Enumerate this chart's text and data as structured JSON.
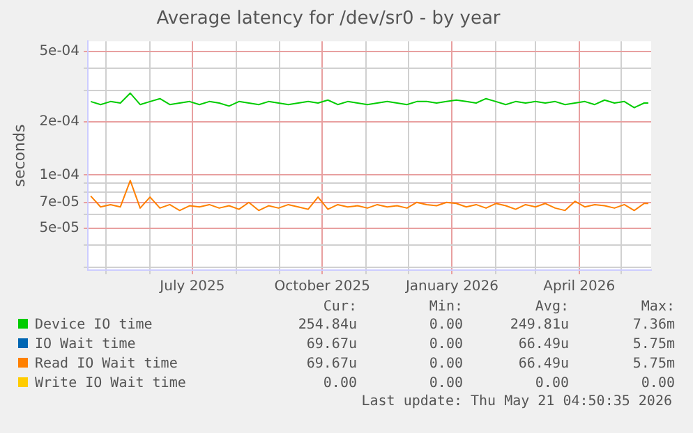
{
  "chart_data": {
    "type": "line",
    "title": "Average latency for /dev/sr0 - by year",
    "ylabel": "seconds",
    "log": "y",
    "grid": true,
    "legend": "bottom",
    "xlim": [
      "2025-04-18",
      "2026-05-22"
    ],
    "xticks": [
      {
        "value": "2025-05-01",
        "label": null
      },
      {
        "value": "2025-06-01",
        "label": null
      },
      {
        "value": "2025-07-01",
        "label": "July 2025"
      },
      {
        "value": "2025-08-01",
        "label": null
      },
      {
        "value": "2025-09-01",
        "label": null
      },
      {
        "value": "2025-10-01",
        "label": "October 2025"
      },
      {
        "value": "2025-11-01",
        "label": null
      },
      {
        "value": "2025-12-01",
        "label": null
      },
      {
        "value": "2026-01-01",
        "label": "January 2026"
      },
      {
        "value": "2026-02-01",
        "label": null
      },
      {
        "value": "2026-03-01",
        "label": null
      },
      {
        "value": "2026-04-01",
        "label": "April 2026"
      },
      {
        "value": "2026-05-01",
        "label": null
      }
    ],
    "ylim": [
      2.9e-05,
      0.00057
    ],
    "yticks": [
      {
        "value": 3e-05,
        "label": null
      },
      {
        "value": 4e-05,
        "label": null
      },
      {
        "value": 5e-05,
        "label": "5e-05"
      },
      {
        "value": 6e-05,
        "label": null
      },
      {
        "value": 7e-05,
        "label": "7e-05"
      },
      {
        "value": 8e-05,
        "label": null
      },
      {
        "value": 9e-05,
        "label": null
      },
      {
        "value": 0.0001,
        "label": "1e-04"
      },
      {
        "value": 0.0002,
        "label": "2e-04"
      },
      {
        "value": 0.0003,
        "label": null
      },
      {
        "value": 0.0004,
        "label": null
      },
      {
        "value": 0.0005,
        "label": "5e-04"
      }
    ],
    "x": [
      "2025-04-20",
      "2025-04-27",
      "2025-05-04",
      "2025-05-11",
      "2025-05-18",
      "2025-05-25",
      "2025-06-01",
      "2025-06-08",
      "2025-06-15",
      "2025-06-22",
      "2025-06-29",
      "2025-07-06",
      "2025-07-13",
      "2025-07-20",
      "2025-07-27",
      "2025-08-03",
      "2025-08-10",
      "2025-08-17",
      "2025-08-24",
      "2025-08-31",
      "2025-09-07",
      "2025-09-14",
      "2025-09-21",
      "2025-09-28",
      "2025-10-05",
      "2025-10-12",
      "2025-10-19",
      "2025-10-26",
      "2025-11-02",
      "2025-11-09",
      "2025-11-16",
      "2025-11-23",
      "2025-11-30",
      "2025-12-07",
      "2025-12-14",
      "2025-12-21",
      "2025-12-28",
      "2026-01-04",
      "2026-01-11",
      "2026-01-18",
      "2026-01-25",
      "2026-02-01",
      "2026-02-08",
      "2026-02-15",
      "2026-02-22",
      "2026-03-01",
      "2026-03-08",
      "2026-03-15",
      "2026-03-22",
      "2026-03-29",
      "2026-04-05",
      "2026-04-12",
      "2026-04-19",
      "2026-04-26",
      "2026-05-03",
      "2026-05-10",
      "2026-05-17",
      "2026-05-20"
    ],
    "series": [
      {
        "name": "Device IO time",
        "color": "#00cc00",
        "values": [
          0.00026,
          0.00025,
          0.00026,
          0.000255,
          0.00029,
          0.00025,
          0.00026,
          0.00027,
          0.00025,
          0.000255,
          0.00026,
          0.00025,
          0.00026,
          0.000255,
          0.000245,
          0.00026,
          0.000255,
          0.00025,
          0.00026,
          0.000255,
          0.00025,
          0.000255,
          0.00026,
          0.000255,
          0.000265,
          0.00025,
          0.00026,
          0.000255,
          0.00025,
          0.000255,
          0.00026,
          0.000255,
          0.00025,
          0.00026,
          0.00026,
          0.000255,
          0.00026,
          0.000265,
          0.00026,
          0.000255,
          0.00027,
          0.00026,
          0.00025,
          0.00026,
          0.000255,
          0.00026,
          0.000255,
          0.00026,
          0.00025,
          0.000255,
          0.00026,
          0.00025,
          0.000265,
          0.000255,
          0.00026,
          0.00024,
          0.000255,
          0.000255
        ]
      },
      {
        "name": "IO Wait time",
        "color": "#0066b3",
        "values": [
          null,
          null,
          null,
          null,
          null,
          null,
          null,
          null,
          null,
          null,
          null,
          null,
          null,
          null,
          null,
          null,
          null,
          null,
          null,
          null,
          null,
          null,
          null,
          null,
          null,
          null,
          null,
          null,
          null,
          null,
          null,
          null,
          null,
          null,
          null,
          null,
          null,
          null,
          null,
          null,
          null,
          null,
          null,
          null,
          null,
          null,
          null,
          null,
          null,
          null,
          null,
          null,
          null,
          null,
          null,
          null,
          null,
          null
        ]
      },
      {
        "name": "Read IO Wait time",
        "color": "#ff8000",
        "values": [
          7.6e-05,
          6.6e-05,
          6.8e-05,
          6.6e-05,
          9.3e-05,
          6.5e-05,
          7.5e-05,
          6.5e-05,
          6.8e-05,
          6.3e-05,
          6.7e-05,
          6.6e-05,
          6.8e-05,
          6.5e-05,
          6.7e-05,
          6.4e-05,
          7e-05,
          6.3e-05,
          6.7e-05,
          6.5e-05,
          6.8e-05,
          6.6e-05,
          6.4e-05,
          7.5e-05,
          6.4e-05,
          6.8e-05,
          6.6e-05,
          6.7e-05,
          6.5e-05,
          6.8e-05,
          6.6e-05,
          6.7e-05,
          6.5e-05,
          7e-05,
          6.8e-05,
          6.7e-05,
          7e-05,
          6.9e-05,
          6.6e-05,
          6.8e-05,
          6.5e-05,
          6.9e-05,
          6.7e-05,
          6.4e-05,
          6.8e-05,
          6.6e-05,
          6.9e-05,
          6.5e-05,
          6.3e-05,
          7.1e-05,
          6.6e-05,
          6.8e-05,
          6.7e-05,
          6.5e-05,
          6.8e-05,
          6.3e-05,
          6.9e-05,
          6.9e-05
        ]
      },
      {
        "name": "Write IO Wait time",
        "color": "#ffcc00",
        "values": [
          null,
          null,
          null,
          null,
          null,
          null,
          null,
          null,
          null,
          null,
          null,
          null,
          null,
          null,
          null,
          null,
          null,
          null,
          null,
          null,
          null,
          null,
          null,
          null,
          null,
          null,
          null,
          null,
          null,
          null,
          null,
          null,
          null,
          null,
          null,
          null,
          null,
          null,
          null,
          null,
          null,
          null,
          null,
          null,
          null,
          null,
          null,
          null,
          null,
          null,
          null,
          null,
          null,
          null,
          null,
          null,
          null,
          null
        ]
      }
    ],
    "annotations": [
      "Cur:",
      "Min:",
      "Avg:",
      "Max:",
      "254.84u",
      "0.00",
      "249.81u",
      "7.36m",
      "69.67u",
      "0.00",
      "66.49u",
      "5.75m",
      "69.67u",
      "0.00",
      "66.49u",
      "5.75m",
      "0.00",
      "0.00",
      "0.00",
      "0.00",
      "Last update: Thu May 21 04:50:35 2026"
    ]
  }
}
